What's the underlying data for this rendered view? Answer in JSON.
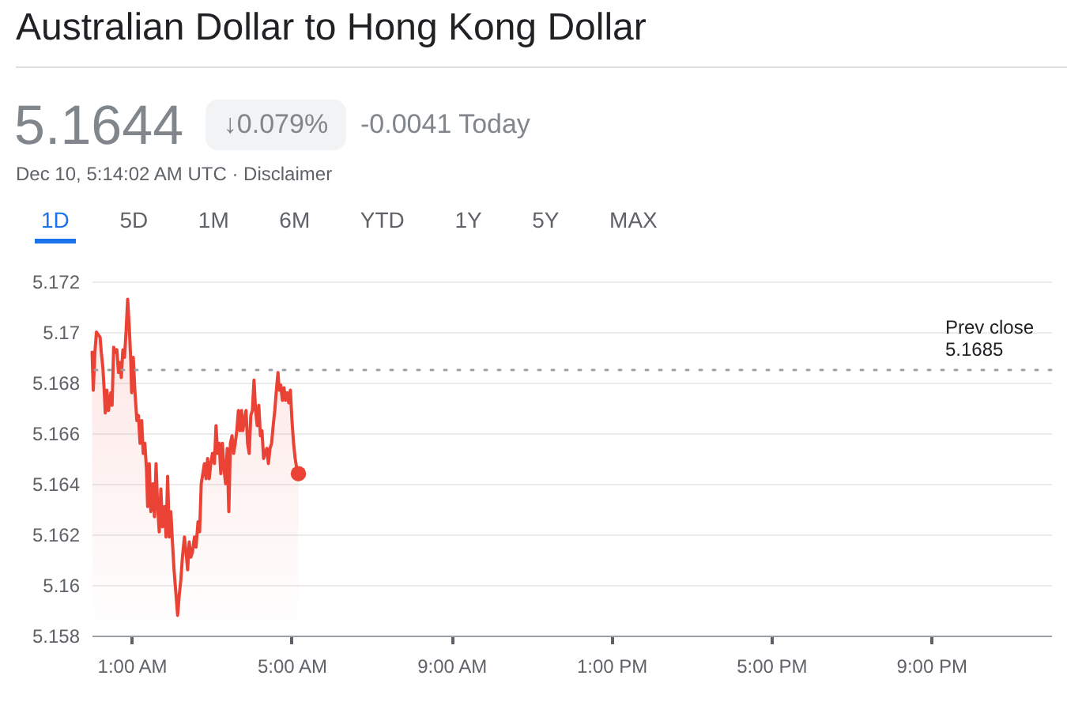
{
  "chart_data": {
    "type": "area",
    "title": "Australian Dollar to Hong Kong Dollar",
    "annotations": [
      "5.1644",
      "↓0.079%",
      "-0.0041 Today",
      "Dec 10, 5:14:02 AM UTC · Disclaimer",
      "1D",
      "5D",
      "1M",
      "6M",
      "YTD",
      "1Y",
      "5Y",
      "MAX"
    ],
    "series": [
      {
        "color": "#ea4335",
        "x": [
          0.01,
          0.04,
          0.08,
          0.12,
          0.16,
          0.21,
          0.24,
          0.28,
          0.32,
          0.34,
          0.38,
          0.42,
          0.48,
          0.51,
          0.55,
          0.59,
          0.63,
          0.67,
          0.71,
          0.74,
          0.78,
          0.82,
          0.86,
          0.9,
          0.94,
          0.98,
          1.0,
          1.04,
          1.08,
          1.13,
          1.17,
          1.21,
          1.25,
          1.29,
          1.33,
          1.37,
          1.4,
          1.44,
          1.48,
          1.53,
          1.57,
          1.61,
          1.65,
          1.69,
          1.73,
          1.77,
          1.82,
          1.86,
          1.9,
          1.94,
          1.98,
          2.02,
          2.06,
          2.1,
          2.15,
          2.19,
          2.23,
          2.27,
          2.32,
          2.36,
          2.4,
          2.44,
          2.48,
          2.52,
          2.57,
          2.61,
          2.66,
          2.7,
          2.74,
          2.78,
          2.82,
          2.86,
          2.9,
          2.94,
          2.98,
          3.02,
          3.07,
          3.11,
          3.15,
          3.19,
          3.23,
          3.27,
          3.31,
          3.35,
          3.39,
          3.43,
          3.47,
          3.51,
          3.55,
          3.59,
          3.63,
          3.67,
          3.71,
          3.75,
          3.78,
          3.82,
          3.86,
          3.9,
          3.94,
          3.98,
          4.02,
          4.06,
          4.1,
          4.14,
          4.18,
          4.22,
          4.26,
          4.3,
          4.34,
          4.38,
          4.42,
          4.46,
          4.5,
          4.54,
          4.58,
          4.62,
          4.66,
          4.69,
          4.73,
          4.77,
          4.81,
          4.85,
          4.89,
          4.93,
          4.97,
          5.01,
          5.05,
          5.09,
          5.13,
          5.17
        ],
        "values": [
          5.1692,
          5.1677,
          5.1692,
          5.17,
          5.1699,
          5.1698,
          5.1692,
          5.1686,
          5.1675,
          5.1668,
          5.1677,
          5.1669,
          5.1676,
          5.1671,
          5.1694,
          5.1692,
          5.1693,
          5.1684,
          5.1688,
          5.1682,
          5.1693,
          5.169,
          5.17,
          5.1713,
          5.1702,
          5.1688,
          5.1676,
          5.169,
          5.1677,
          5.1665,
          5.1667,
          5.1656,
          5.1665,
          5.1652,
          5.1656,
          5.1646,
          5.1631,
          5.1648,
          5.1629,
          5.164,
          5.1627,
          5.1648,
          5.1631,
          5.1621,
          5.1638,
          5.1623,
          5.1631,
          5.1619,
          5.1643,
          5.1619,
          5.1629,
          5.1617,
          5.1606,
          5.1598,
          5.1588,
          5.1596,
          5.1602,
          5.1611,
          5.1619,
          5.1613,
          5.1606,
          5.1617,
          5.1611,
          5.1613,
          5.1619,
          5.1615,
          5.1625,
          5.1621,
          5.164,
          5.1644,
          5.1648,
          5.1642,
          5.165,
          5.1642,
          5.1648,
          5.1652,
          5.1648,
          5.1663,
          5.1652,
          5.1656,
          5.1644,
          5.1656,
          5.1646,
          5.164,
          5.1654,
          5.1629,
          5.1656,
          5.1659,
          5.1652,
          5.1656,
          5.1661,
          5.1669,
          5.1661,
          5.1669,
          5.1661,
          5.1665,
          5.1669,
          5.1656,
          5.1652,
          5.1667,
          5.1669,
          5.1681,
          5.1669,
          5.1663,
          5.1671,
          5.1659,
          5.1661,
          5.165,
          5.1652,
          5.1654,
          5.1648,
          5.1654,
          5.1656,
          5.1663,
          5.1669,
          5.1677,
          5.1684,
          5.1677,
          5.1679,
          5.1673,
          5.1678,
          5.1673,
          5.1676,
          5.1672,
          5.1677,
          5.1665,
          5.1656,
          5.165,
          5.1646,
          5.1644
        ]
      },
      {
        "type": "scatter",
        "color": "#ea4335",
        "marker": "circle",
        "x": [
          5.17
        ],
        "values": [
          5.1644
        ]
      }
    ],
    "xlim": [
      0,
      24
    ],
    "xticks": [
      {
        "value": 1,
        "label": "1:00 AM"
      },
      {
        "value": 5,
        "label": "5:00 AM"
      },
      {
        "value": 9,
        "label": "9:00 AM"
      },
      {
        "value": 13,
        "label": "1:00 PM"
      },
      {
        "value": 17,
        "label": "5:00 PM"
      },
      {
        "value": 21,
        "label": "9:00 PM"
      }
    ],
    "ylim": [
      5.158,
      5.172
    ],
    "yticks": [
      5.158,
      5.16,
      5.162,
      5.164,
      5.166,
      5.168,
      5.17,
      5.172
    ],
    "ref_lines": [
      {
        "axis": "y",
        "value": 5.1685,
        "label": "Prev close\n5.1685",
        "color": "#9aa0a6",
        "line_style": "dotted"
      }
    ],
    "grid": "y"
  }
}
